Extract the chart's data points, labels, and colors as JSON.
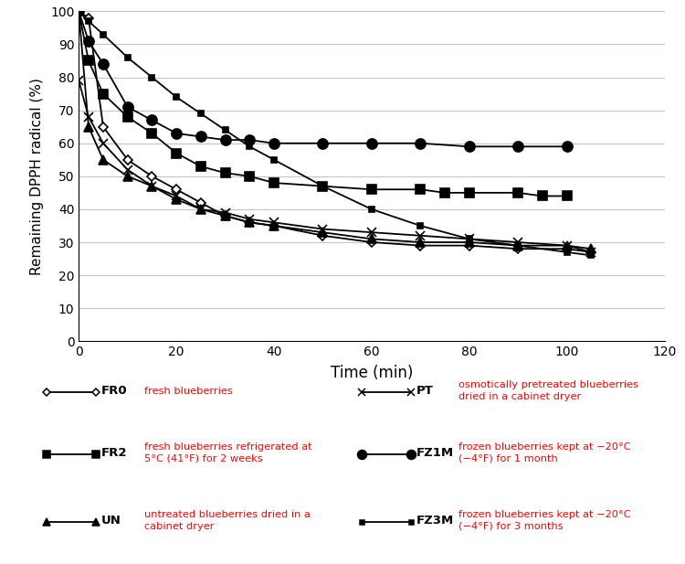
{
  "xlabel": "Time (min)",
  "ylabel": "Remaining DPPH radical (%)",
  "xlim": [
    0,
    120
  ],
  "ylim": [
    0,
    100
  ],
  "xticks": [
    0,
    20,
    40,
    60,
    80,
    100,
    120
  ],
  "yticks": [
    0,
    10,
    20,
    30,
    40,
    50,
    60,
    70,
    80,
    90,
    100
  ],
  "series": {
    "FR0": {
      "x": [
        0,
        2,
        5,
        10,
        15,
        20,
        25,
        30,
        35,
        40,
        50,
        60,
        70,
        80,
        90,
        100,
        105
      ],
      "y": [
        100,
        98,
        65,
        55,
        50,
        46,
        42,
        38,
        36,
        35,
        32,
        30,
        29,
        29,
        28,
        28,
        27
      ],
      "marker": "D",
      "markersize": 5,
      "markerfacecolor": "white",
      "markeredgecolor": "black",
      "color": "black",
      "linewidth": 1.3,
      "linestyle": "-",
      "zorder": 3
    },
    "FR2": {
      "x": [
        0,
        2,
        5,
        10,
        15,
        20,
        25,
        30,
        35,
        40,
        50,
        60,
        70,
        75,
        80,
        90,
        95,
        100
      ],
      "y": [
        100,
        85,
        75,
        68,
        63,
        57,
        53,
        51,
        50,
        48,
        47,
        46,
        46,
        45,
        45,
        45,
        44,
        44
      ],
      "marker": "s",
      "markersize": 7,
      "markerfacecolor": "black",
      "markeredgecolor": "black",
      "color": "black",
      "linewidth": 1.3,
      "linestyle": "-",
      "zorder": 3
    },
    "UN": {
      "x": [
        0,
        2,
        5,
        10,
        15,
        20,
        25,
        30,
        35,
        40,
        50,
        60,
        70,
        80,
        90,
        100,
        105
      ],
      "y": [
        100,
        65,
        55,
        50,
        47,
        43,
        40,
        38,
        36,
        35,
        33,
        31,
        30,
        30,
        29,
        29,
        28
      ],
      "marker": "^",
      "markersize": 7,
      "markerfacecolor": "black",
      "markeredgecolor": "black",
      "color": "black",
      "linewidth": 1.3,
      "linestyle": "-",
      "zorder": 3
    },
    "PT": {
      "x": [
        0,
        2,
        5,
        10,
        15,
        20,
        25,
        30,
        35,
        40,
        50,
        60,
        70,
        80,
        90,
        100,
        105
      ],
      "y": [
        79,
        68,
        60,
        52,
        47,
        44,
        40,
        39,
        37,
        36,
        34,
        33,
        32,
        31,
        30,
        29,
        27
      ],
      "marker": "x",
      "markersize": 7,
      "markerfacecolor": "black",
      "markeredgecolor": "black",
      "color": "black",
      "linewidth": 1.3,
      "linestyle": "-",
      "zorder": 3
    },
    "FZ1M": {
      "x": [
        0,
        2,
        5,
        10,
        15,
        20,
        25,
        30,
        35,
        40,
        50,
        60,
        70,
        80,
        90,
        100
      ],
      "y": [
        100,
        91,
        84,
        71,
        67,
        63,
        62,
        61,
        61,
        60,
        60,
        60,
        60,
        59,
        59,
        59
      ],
      "marker": "o",
      "markersize": 8,
      "markerfacecolor": "black",
      "markeredgecolor": "black",
      "color": "black",
      "linewidth": 1.3,
      "linestyle": "-",
      "zorder": 3
    },
    "FZ3M": {
      "x": [
        0,
        2,
        5,
        10,
        15,
        20,
        25,
        30,
        35,
        40,
        50,
        60,
        70,
        80,
        90,
        100,
        105
      ],
      "y": [
        100,
        97,
        93,
        86,
        80,
        74,
        69,
        64,
        59,
        55,
        47,
        40,
        35,
        31,
        29,
        27,
        26
      ],
      "marker": "s",
      "markersize": 4,
      "markerfacecolor": "black",
      "markeredgecolor": "black",
      "color": "black",
      "linewidth": 1.3,
      "linestyle": "-",
      "zorder": 3
    }
  },
  "legend_items": [
    {
      "key": "FR0",
      "label": "FR0",
      "col": 0,
      "row": 0,
      "desc": "fresh blueberries"
    },
    {
      "key": "FR2",
      "label": "FR2",
      "col": 0,
      "row": 1,
      "desc": "fresh blueberries refrigerated at\n5°C (41°F) for 2 weeks"
    },
    {
      "key": "UN",
      "label": "UN",
      "col": 0,
      "row": 2,
      "desc": "untreated blueberries dried in a\ncabinet dryer"
    },
    {
      "key": "PT",
      "label": "PT",
      "col": 1,
      "row": 0,
      "desc": "osmotically pretreated blueberries\ndried in a cabinet dryer"
    },
    {
      "key": "FZ1M",
      "label": "FZ1M",
      "col": 1,
      "row": 1,
      "desc": "frozen blueberries kept at −20°C\n(−4°F) for 1 month"
    },
    {
      "key": "FZ3M",
      "label": "FZ3M",
      "col": 1,
      "row": 2,
      "desc": "frozen blueberries kept at −20°C\n(−4°F) for 3 months"
    }
  ],
  "figsize": [
    7.5,
    6.17
  ],
  "dpi": 100
}
